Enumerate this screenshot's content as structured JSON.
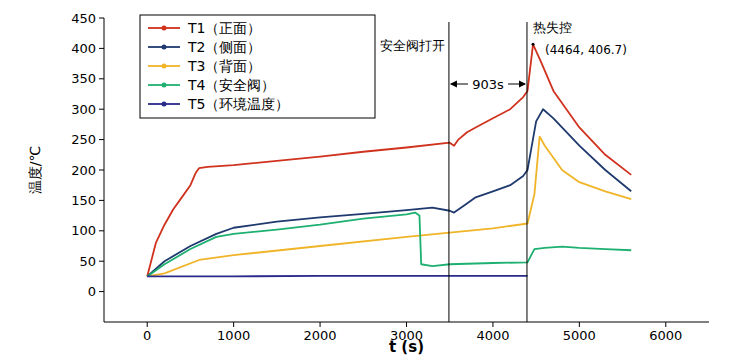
{
  "chart_data": {
    "type": "line",
    "x_label": "t (s)",
    "y_label": "温度/℃",
    "xlim": [
      -500,
      6500
    ],
    "ylim": [
      -50,
      450
    ],
    "xticks": [
      0,
      1000,
      2000,
      3000,
      4000,
      5000,
      6000
    ],
    "yticks": [
      0,
      50,
      100,
      150,
      200,
      250,
      300,
      350,
      400,
      450
    ],
    "grid": false,
    "legend": "upper left",
    "series": [
      {
        "name": "T1（正面）",
        "color": "#d0321e",
        "line_style": "solid",
        "x": [
          0,
          100,
          200,
          300,
          400,
          500,
          560,
          600,
          700,
          1000,
          1500,
          2000,
          2500,
          3000,
          3500,
          3550,
          3600,
          3700,
          3800,
          4000,
          4200,
          4350,
          4400,
          4464,
          4550,
          4700,
          5000,
          5300,
          5600
        ],
        "values": [
          25,
          80,
          110,
          135,
          155,
          175,
          195,
          203,
          205,
          208,
          215,
          222,
          230,
          237,
          245,
          240,
          250,
          262,
          270,
          285,
          300,
          320,
          330,
          406.7,
          380,
          330,
          270,
          225,
          192
        ]
      },
      {
        "name": "T2（侧面）",
        "color": "#1f3a6e",
        "line_style": "solid",
        "x": [
          0,
          200,
          500,
          800,
          1000,
          1500,
          2000,
          2500,
          3000,
          3300,
          3500,
          3550,
          3700,
          3800,
          4000,
          4200,
          4350,
          4400,
          4450,
          4500,
          4580,
          4700,
          5000,
          5300,
          5600
        ],
        "values": [
          25,
          50,
          75,
          95,
          105,
          115,
          122,
          128,
          134,
          138,
          133,
          130,
          145,
          155,
          165,
          175,
          190,
          200,
          240,
          280,
          300,
          285,
          240,
          200,
          165
        ]
      },
      {
        "name": "T3（背面）",
        "color": "#f0b428",
        "line_style": "solid",
        "x": [
          0,
          200,
          600,
          1000,
          2000,
          3000,
          3500,
          4000,
          4400,
          4480,
          4540,
          4600,
          4800,
          5000,
          5300,
          5600
        ],
        "values": [
          25,
          30,
          52,
          60,
          75,
          90,
          97,
          104,
          112,
          160,
          255,
          240,
          200,
          180,
          165,
          152
        ]
      },
      {
        "name": "T4（安全阀）",
        "color": "#1db070",
        "line_style": "solid",
        "x": [
          0,
          200,
          500,
          800,
          1000,
          1500,
          2000,
          2500,
          3000,
          3100,
          3150,
          3170,
          3300,
          3500,
          4000,
          4400,
          4480,
          4600,
          4800,
          5000,
          5300,
          5600
        ],
        "values": [
          25,
          45,
          70,
          90,
          95,
          102,
          110,
          120,
          127,
          130,
          125,
          45,
          42,
          45,
          47,
          48,
          70,
          72,
          74,
          72,
          70,
          68
        ]
      },
      {
        "name": "T5（环境温度）",
        "color": "#2a2a8c",
        "line_style": "solid",
        "x": [
          0,
          1000,
          2000,
          3000,
          4400
        ],
        "values": [
          25,
          25,
          26,
          26,
          26
        ]
      }
    ],
    "vlines": [
      {
        "x": 3491,
        "label": "安全阀打开"
      },
      {
        "x": 4394,
        "label": "热失控"
      }
    ],
    "interval_label": "903s",
    "point_label": {
      "x": 4464,
      "y": 406.7,
      "label": "(4464, 406.7)"
    }
  }
}
